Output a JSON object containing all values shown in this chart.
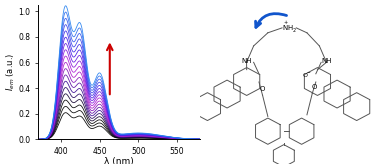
{
  "xmin": 370,
  "xmax": 580,
  "ymin": 0.0,
  "ymax": 1.05,
  "xlabel": "λ (nm)",
  "xticks": [
    400,
    450,
    500,
    550
  ],
  "yticks": [
    0.0,
    0.2,
    0.4,
    0.6,
    0.8,
    1.0
  ],
  "peak1": 405,
  "peak2": 425,
  "peak3": 450,
  "n_curves": 18,
  "bg_color": "#ffffff",
  "arrow_color": "#cc0000",
  "struct_color": "#555555"
}
